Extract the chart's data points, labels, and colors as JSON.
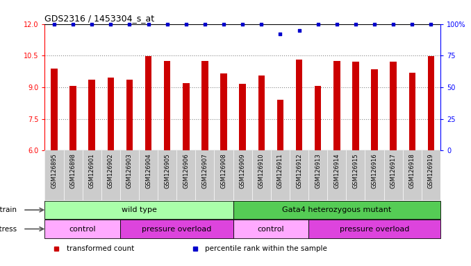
{
  "title": "GDS2316 / 1453304_s_at",
  "samples": [
    "GSM126895",
    "GSM126898",
    "GSM126901",
    "GSM126902",
    "GSM126903",
    "GSM126904",
    "GSM126905",
    "GSM126906",
    "GSM126907",
    "GSM126908",
    "GSM126909",
    "GSM126910",
    "GSM126911",
    "GSM126912",
    "GSM126913",
    "GSM126914",
    "GSM126915",
    "GSM126916",
    "GSM126917",
    "GSM126918",
    "GSM126919"
  ],
  "bar_values": [
    9.9,
    9.05,
    9.35,
    9.45,
    9.35,
    10.48,
    10.25,
    9.2,
    10.25,
    9.65,
    9.15,
    9.55,
    8.4,
    10.3,
    9.05,
    10.25,
    10.2,
    9.85,
    10.2,
    9.7,
    10.48
  ],
  "percentile_values": [
    100,
    100,
    100,
    100,
    100,
    100,
    100,
    100,
    100,
    100,
    100,
    100,
    92,
    95,
    100,
    100,
    100,
    100,
    100,
    100,
    100
  ],
  "bar_color": "#cc0000",
  "dot_color": "#0000cc",
  "ylim_left": [
    6,
    12
  ],
  "ylim_right": [
    0,
    100
  ],
  "yticks_left": [
    6,
    7.5,
    9,
    10.5,
    12
  ],
  "yticks_right": [
    0,
    25,
    50,
    75,
    100
  ],
  "ylabel_right_labels": [
    "0",
    "25",
    "50",
    "75",
    "100%"
  ],
  "strain_labels": [
    {
      "text": "wild type",
      "start": 0,
      "end": 10,
      "color": "#aaffaa"
    },
    {
      "text": "Gata4 heterozygous mutant",
      "start": 10,
      "end": 21,
      "color": "#55cc55"
    }
  ],
  "stress_labels": [
    {
      "text": "control",
      "start": 0,
      "end": 4,
      "color": "#ffaaff"
    },
    {
      "text": "pressure overload",
      "start": 4,
      "end": 10,
      "color": "#dd44dd"
    },
    {
      "text": "control",
      "start": 10,
      "end": 14,
      "color": "#ffaaff"
    },
    {
      "text": "pressure overload",
      "start": 14,
      "end": 21,
      "color": "#dd44dd"
    }
  ],
  "legend_items": [
    {
      "label": "transformed count",
      "color": "#cc0000",
      "marker": "s"
    },
    {
      "label": "percentile rank within the sample",
      "color": "#0000cc",
      "marker": "s"
    }
  ],
  "strain_row_label": "strain",
  "stress_row_label": "stress",
  "tick_bg_color": "#cccccc",
  "plot_bg_color": "#ffffff",
  "grid_color": "#888888"
}
